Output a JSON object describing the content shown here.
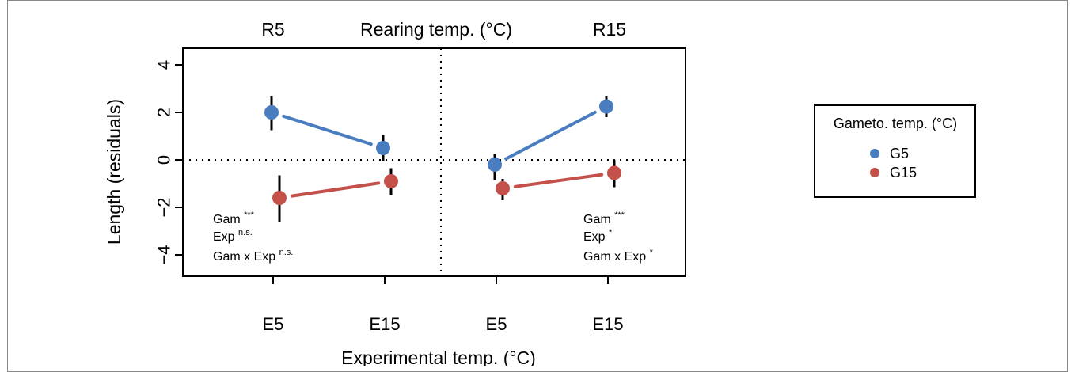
{
  "chart_data": {
    "type": "scatter",
    "title_left": "R5",
    "title_center": "Rearing temp. (°C)",
    "title_right": "R15",
    "xlabel": "Experimental temp. (°C)",
    "ylabel": "Length (residuals)",
    "categories": [
      "E5",
      "E15",
      "E5",
      "E15"
    ],
    "panels": [
      "R5",
      "R15"
    ],
    "ylim": [
      -5,
      5
    ],
    "yticks": [
      -4,
      -2,
      0,
      2,
      4
    ],
    "ytick_labels": [
      "−4",
      "−2",
      "0",
      "2",
      "4"
    ],
    "legend": {
      "title": "Gameto. temp. (°C)",
      "position": "right"
    },
    "series": [
      {
        "name": "G5",
        "color": "#4a7cc0",
        "points": [
          {
            "x": 0,
            "y": 2.0,
            "lo": 1.25,
            "hi": 2.7
          },
          {
            "x": 1,
            "y": 0.5,
            "lo": -0.05,
            "hi": 1.05
          },
          {
            "x": 2,
            "y": -0.2,
            "lo": -0.85,
            "hi": 0.25
          },
          {
            "x": 3,
            "y": 2.25,
            "lo": 1.8,
            "hi": 2.7
          }
        ]
      },
      {
        "name": "G15",
        "color": "#c4504a",
        "points": [
          {
            "x": 0,
            "y": -1.6,
            "lo": -2.6,
            "hi": -0.65
          },
          {
            "x": 1,
            "y": -0.9,
            "lo": -1.5,
            "hi": -0.35
          },
          {
            "x": 2,
            "y": -1.2,
            "lo": -1.7,
            "hi": -0.8
          },
          {
            "x": 3,
            "y": -0.55,
            "lo": -1.15,
            "hi": 0.0
          }
        ]
      }
    ],
    "annotations": {
      "left": [
        {
          "text": "Gam ",
          "sup": "***"
        },
        {
          "text": "Exp ",
          "sup": "n.s."
        },
        {
          "text": "Gam x Exp ",
          "sup": "n.s."
        }
      ],
      "right": [
        {
          "text": "Gam ",
          "sup": "***"
        },
        {
          "text": "Exp ",
          "sup": "*"
        },
        {
          "text": "Gam x Exp ",
          "sup": "*"
        }
      ]
    },
    "grid": false
  }
}
